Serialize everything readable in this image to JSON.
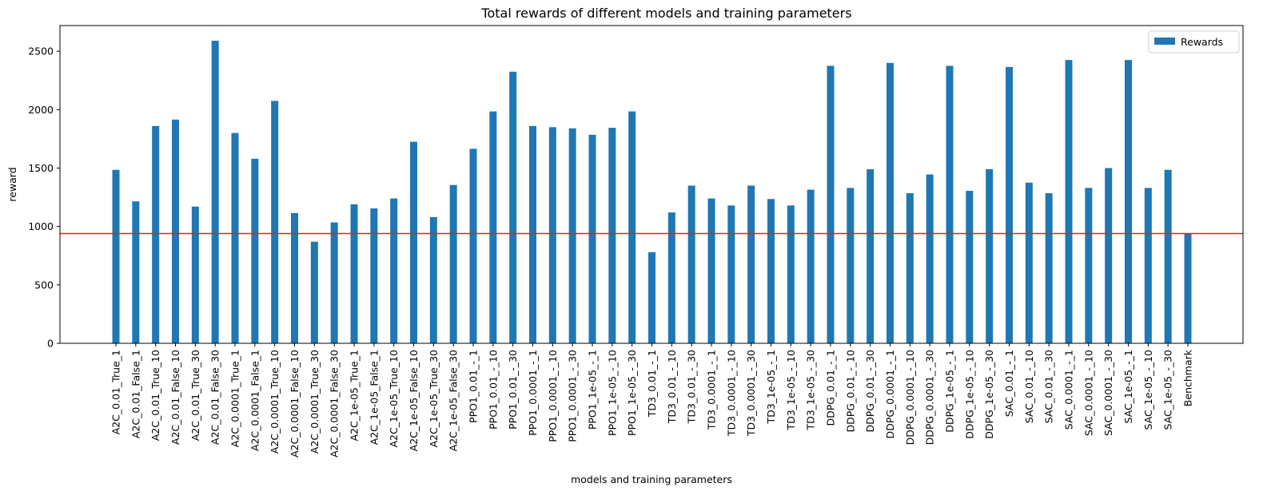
{
  "chart_data": {
    "type": "bar",
    "title": "Total rewards of different models and training parameters",
    "xlabel": "models and training parameters",
    "ylabel": "reward",
    "ylim": [
      0,
      2720
    ],
    "yticks": [
      0,
      500,
      1000,
      1500,
      2000,
      2500
    ],
    "legend": {
      "position": "top-right",
      "entries": [
        "Rewards"
      ]
    },
    "grid": false,
    "bar_color": "#1f77b4",
    "reference_line": {
      "value": 940,
      "color": "#e3201b"
    },
    "categories": [
      "A2C_0.01_True_1",
      "A2C_0.01_False_1",
      "A2C_0.01_True_10",
      "A2C_0.01_False_10",
      "A2C_0.01_True_30",
      "A2C_0.01_False_30",
      "A2C_0.0001_True_1",
      "A2C_0.0001_False_1",
      "A2C_0.0001_True_10",
      "A2C_0.0001_False_10",
      "A2C_0.0001_True_30",
      "A2C_0.0001_False_30",
      "A2C_1e-05_True_1",
      "A2C_1e-05_False_1",
      "A2C_1e-05_True_10",
      "A2C_1e-05_False_10",
      "A2C_1e-05_True_30",
      "A2C_1e-05_False_30",
      "PPO1_0.01_-_1",
      "PPO1_0.01_-_10",
      "PPO1_0.01_-_30",
      "PPO1_0.0001_-_1",
      "PPO1_0.0001_-_10",
      "PPO1_0.0001_-_30",
      "PPO1_1e-05_-_1",
      "PPO1_1e-05_-_10",
      "PPO1_1e-05_-_30",
      "TD3_0.01_-_1",
      "TD3_0.01_-_10",
      "TD3_0.01_-_30",
      "TD3_0.0001_-_1",
      "TD3_0.0001_-_10",
      "TD3_0.0001_-_30",
      "TD3_1e-05_-_1",
      "TD3_1e-05_-_10",
      "TD3_1e-05_-_30",
      "DDPG_0.01_-_1",
      "DDPG_0.01_-_10",
      "DDPG_0.01_-_30",
      "DDPG_0.0001_-_1",
      "DDPG_0.0001_-_10",
      "DDPG_0.0001_-_30",
      "DDPG_1e-05_-_1",
      "DDPG_1e-05_-_10",
      "DDPG_1e-05_-_30",
      "SAC_0.01_-_1",
      "SAC_0.01_-_10",
      "SAC_0.01_-_30",
      "SAC_0.0001_-_1",
      "SAC_0.0001_-_10",
      "SAC_0.0001_-_30",
      "SAC_1e-05_-_1",
      "SAC_1e-05_-_10",
      "SAC_1e-05_-_30",
      "Benchmark"
    ],
    "series": [
      {
        "name": "Rewards",
        "values": [
          1485,
          1215,
          1860,
          1915,
          1170,
          2590,
          1800,
          1580,
          2075,
          1115,
          870,
          1035,
          1190,
          1155,
          1240,
          1725,
          1080,
          1355,
          1665,
          1985,
          2325,
          1860,
          1850,
          1840,
          1785,
          1845,
          1985,
          780,
          1120,
          1350,
          1240,
          1180,
          1350,
          1235,
          1180,
          1315,
          2375,
          1330,
          1490,
          2400,
          1285,
          1445,
          2375,
          1305,
          1490,
          2365,
          1375,
          1285,
          2425,
          1330,
          1500,
          2425,
          1330,
          1485,
          940
        ]
      }
    ]
  }
}
